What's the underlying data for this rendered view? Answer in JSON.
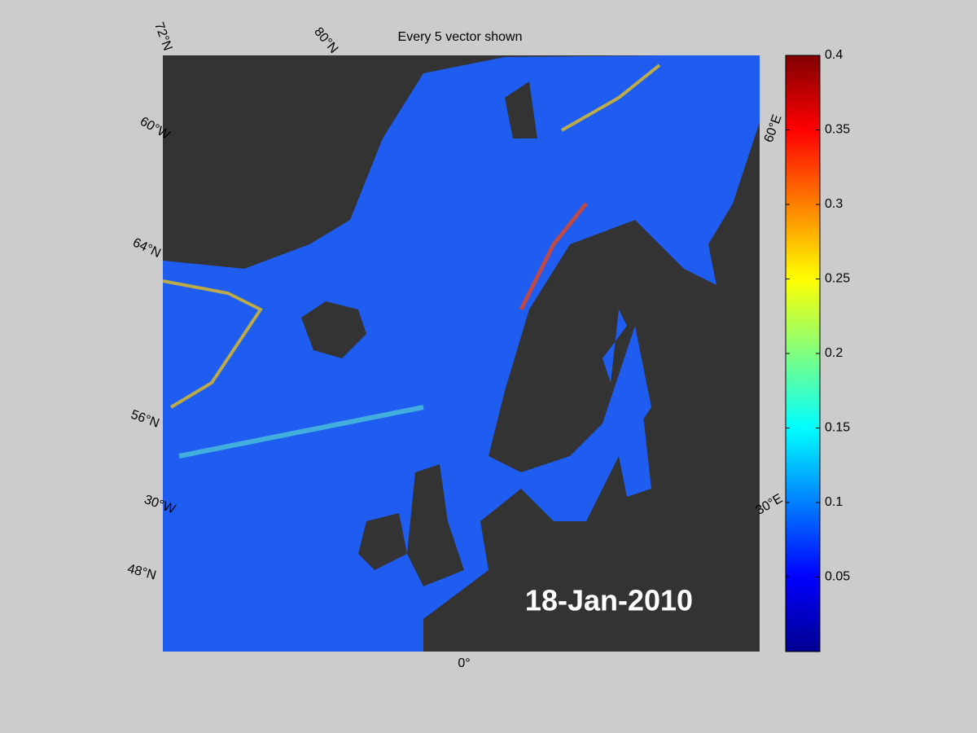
{
  "title": "Every 5 vector shown",
  "date_label": "18-Jan-2010",
  "graticule_labels": [
    "72°N",
    "80°N",
    "60°W",
    "64°N",
    "56°N",
    "30°W",
    "48°N",
    "0°",
    "30°E",
    "60°E"
  ],
  "colorbar": {
    "lim": [
      0,
      0.4
    ],
    "ticks": [
      0.05,
      0.1,
      0.15,
      0.2,
      0.25,
      0.3,
      0.35,
      0.4
    ]
  }
}
